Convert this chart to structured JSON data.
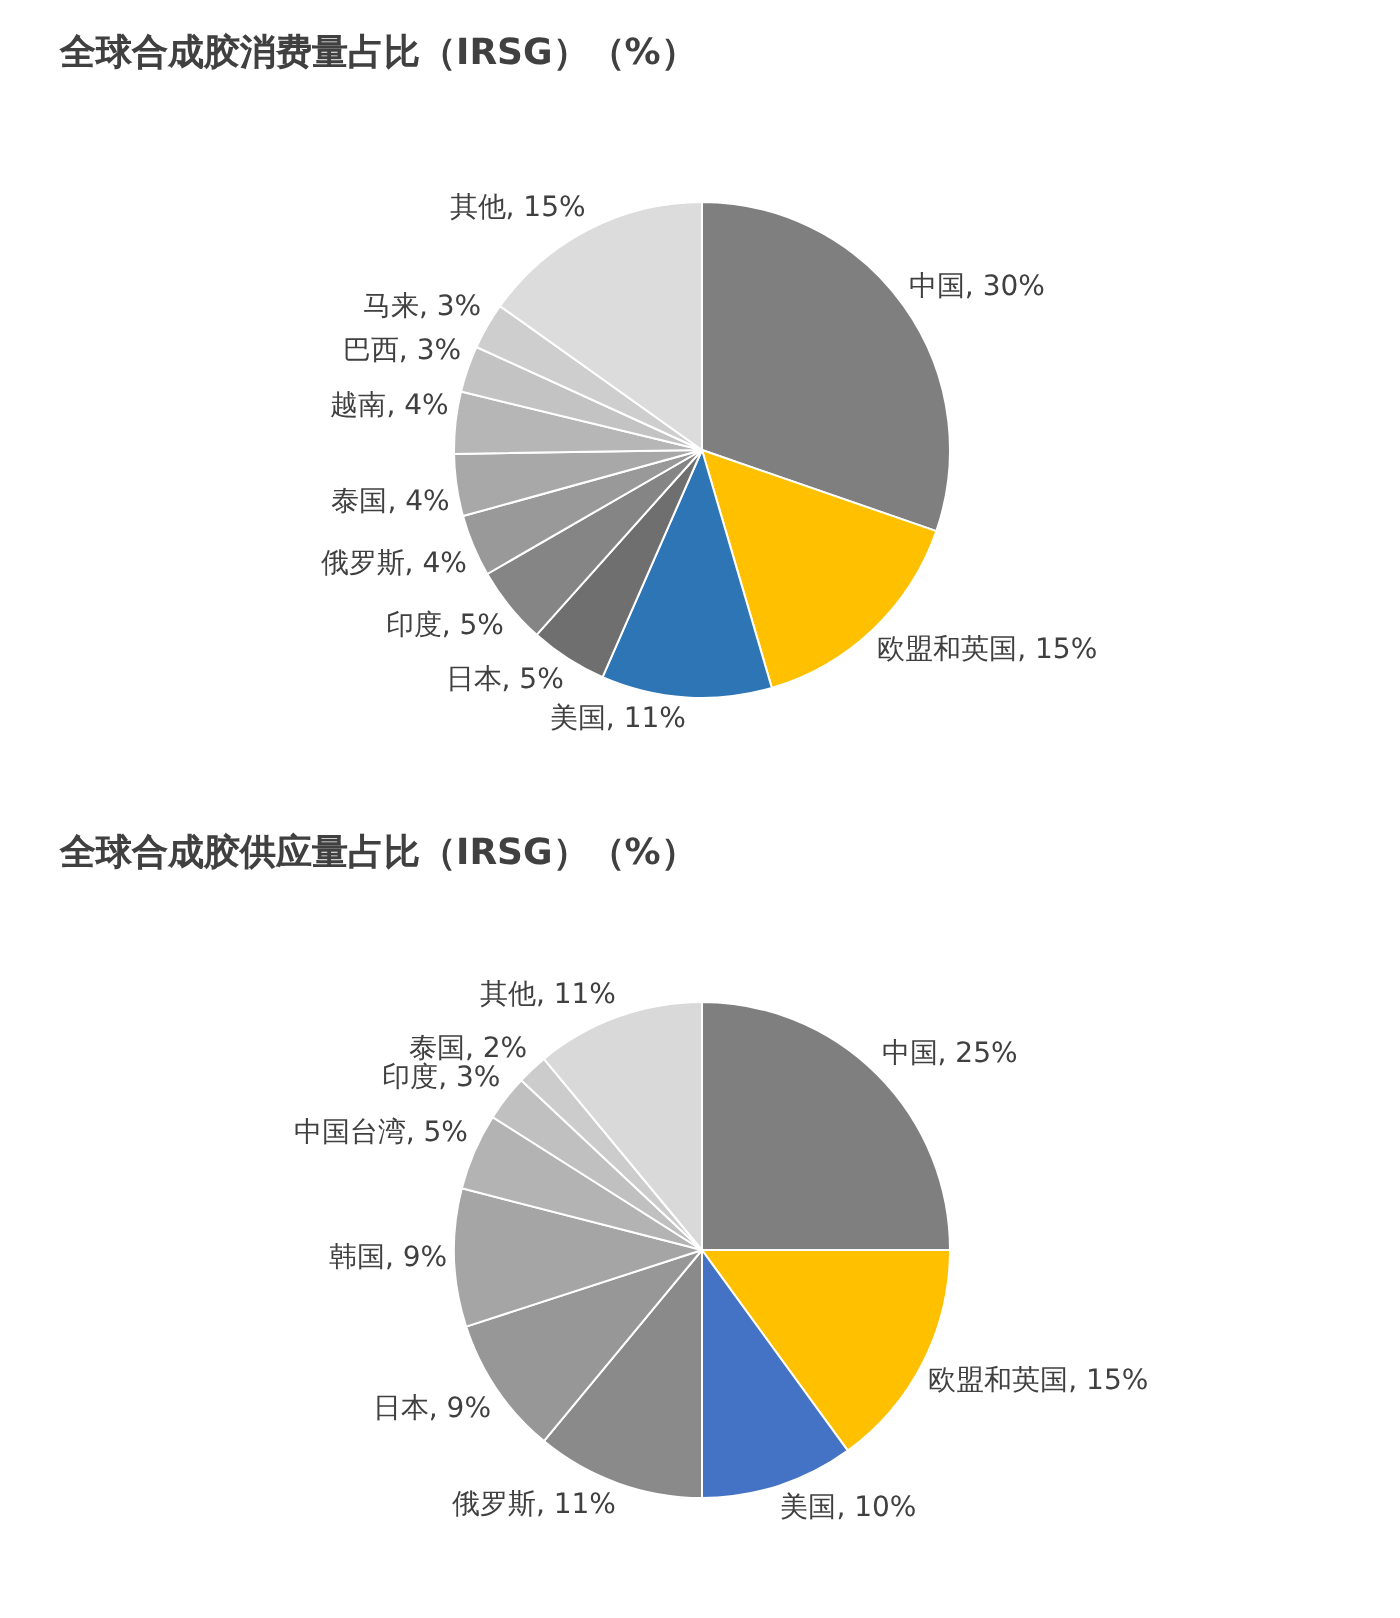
{
  "chart_data": [
    {
      "type": "pie",
      "title": "全球合成胶消费量占比（IRSG）（%）",
      "categories": [
        "中国",
        "欧盟和英国",
        "美国",
        "日本",
        "印度",
        "俄罗斯",
        "泰国",
        "越南",
        "巴西",
        "马来",
        "其他"
      ],
      "values": [
        30,
        15,
        11,
        5,
        5,
        4,
        4,
        4,
        3,
        3,
        15
      ],
      "colors": [
        "#7f7f7f",
        "#ffc000",
        "#2e75b6",
        "#6f6f6f",
        "#858585",
        "#999999",
        "#a8a8a8",
        "#b6b6b6",
        "#c3c3c3",
        "#cecece",
        "#dcdcdc"
      ],
      "value_labels": [
        "30%",
        "15%",
        "11%",
        "5%",
        "5%",
        "4%",
        "4%",
        "4%",
        "3%",
        "3%",
        "15%"
      ]
    },
    {
      "type": "pie",
      "title": "全球合成胶供应量占比（IRSG）（%）",
      "categories": [
        "中国",
        "欧盟和英国",
        "美国",
        "俄罗斯",
        "日本",
        "韩国",
        "中国台湾",
        "印度",
        "泰国",
        "其他"
      ],
      "values": [
        25,
        15,
        10,
        11,
        9,
        9,
        5,
        3,
        2,
        11
      ],
      "colors": [
        "#7f7f7f",
        "#ffc000",
        "#4472c4",
        "#8a8a8a",
        "#979797",
        "#a5a5a5",
        "#b3b3b3",
        "#c0c0c0",
        "#cccccc",
        "#d9d9d9"
      ],
      "value_labels": [
        "25%",
        "15%",
        "10%",
        "11%",
        "9%",
        "9%",
        "5%",
        "3%",
        "2%",
        "11%"
      ]
    }
  ]
}
